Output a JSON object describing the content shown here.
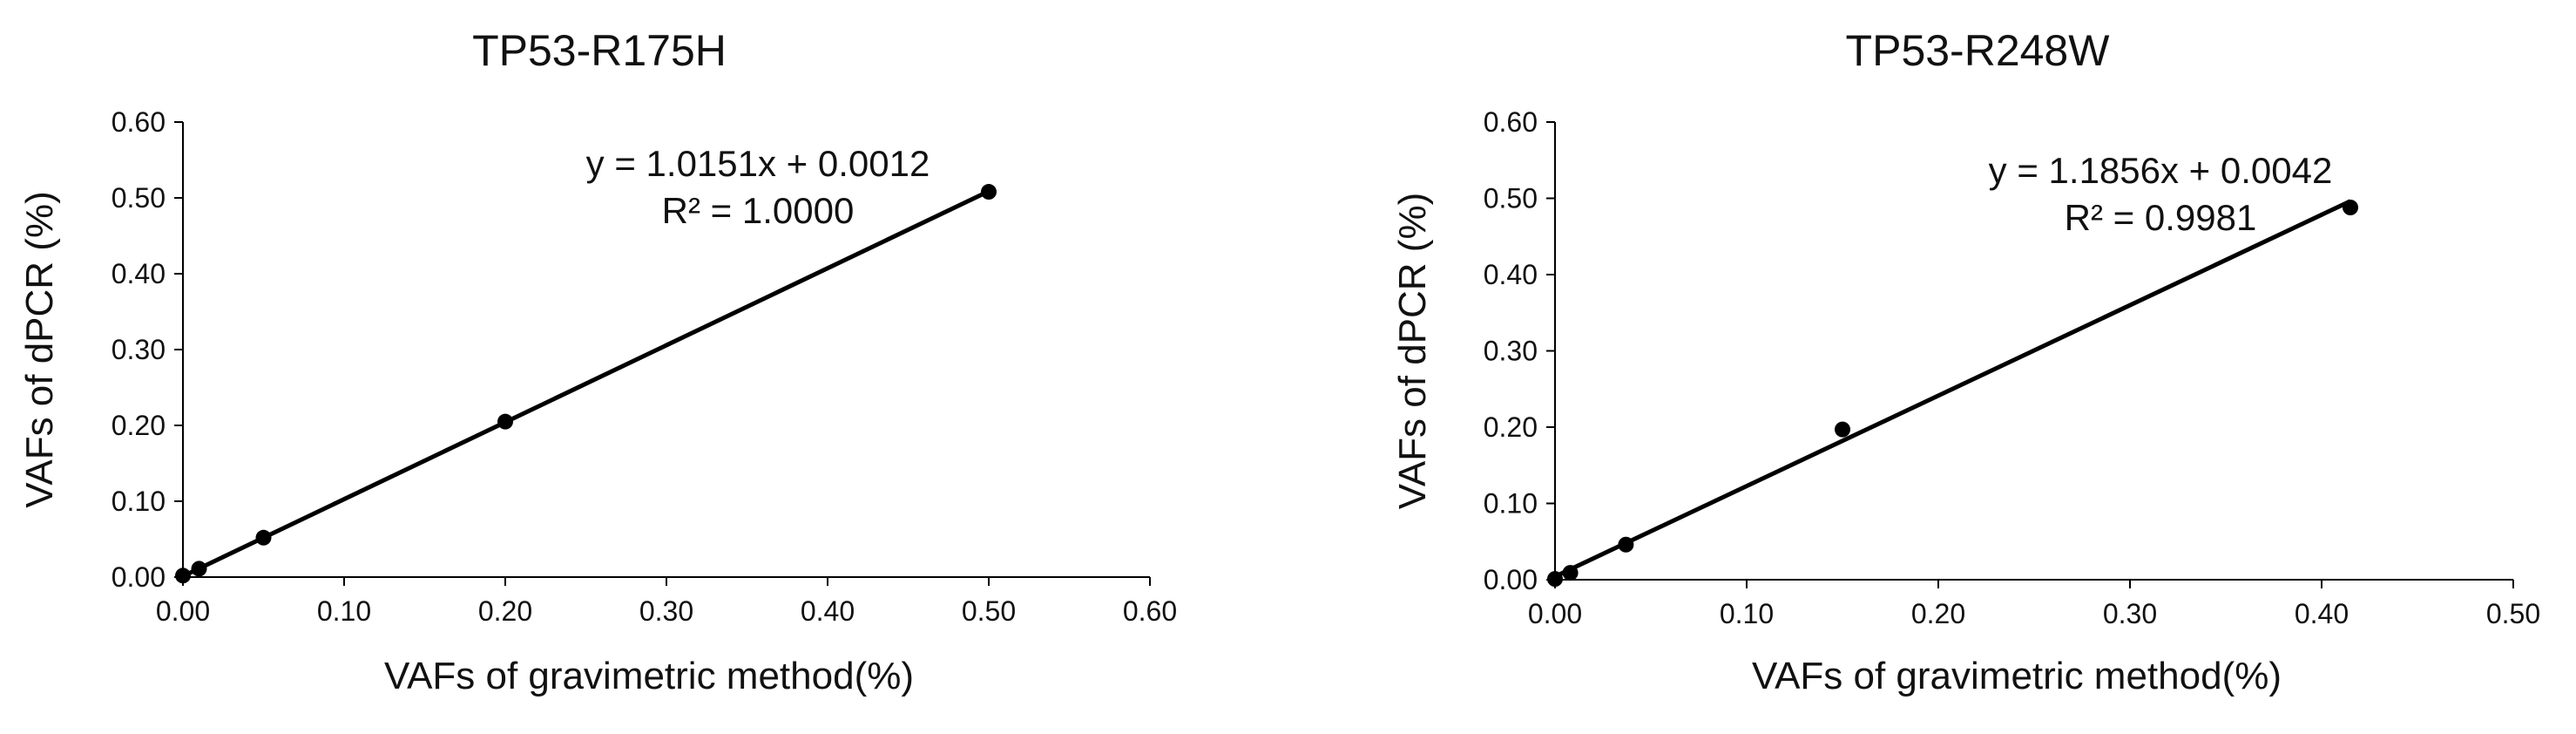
{
  "chart_data": [
    {
      "type": "scatter",
      "title": "TP53-R175H",
      "xlabel": "VAFs of gravimetric method(%)",
      "ylabel": "VAFs of dPCR (%)",
      "xlim": [
        0,
        0.6
      ],
      "ylim": [
        0,
        0.6
      ],
      "xticks": [
        "0.00",
        "0.10",
        "0.20",
        "0.30",
        "0.40",
        "0.50",
        "0.60"
      ],
      "yticks": [
        "0.00",
        "0.10",
        "0.20",
        "0.30",
        "0.40",
        "0.50",
        "0.60"
      ],
      "grid": false,
      "marker_color": "#000000",
      "points": [
        {
          "x": 0.0,
          "y": 0.002
        },
        {
          "x": 0.01,
          "y": 0.011
        },
        {
          "x": 0.05,
          "y": 0.052
        },
        {
          "x": 0.2,
          "y": 0.205
        },
        {
          "x": 0.5,
          "y": 0.508
        }
      ],
      "trendline": {
        "slope": 1.0151,
        "intercept": 0.0012,
        "x_range": [
          0.0,
          0.5
        ],
        "color": "#000000"
      },
      "equation_line1": "y = 1.0151x + 0.0012",
      "equation_line2": "R² = 1.0000"
    },
    {
      "type": "scatter",
      "title": "TP53-R248W",
      "xlabel": "VAFs of gravimetric method(%)",
      "ylabel": "VAFs of dPCR (%)",
      "xlim": [
        0,
        0.5
      ],
      "ylim": [
        0,
        0.6
      ],
      "xticks": [
        "0.00",
        "0.10",
        "0.20",
        "0.30",
        "0.40",
        "0.50"
      ],
      "yticks": [
        "0.00",
        "0.10",
        "0.20",
        "0.30",
        "0.40",
        "0.50",
        "0.60"
      ],
      "grid": false,
      "marker_color": "#000000",
      "points": [
        {
          "x": 0.0,
          "y": 0.001
        },
        {
          "x": 0.008,
          "y": 0.009
        },
        {
          "x": 0.037,
          "y": 0.046
        },
        {
          "x": 0.15,
          "y": 0.197
        },
        {
          "x": 0.415,
          "y": 0.488
        }
      ],
      "trendline": {
        "slope": 1.1856,
        "intercept": 0.0042,
        "x_range": [
          0.0,
          0.415
        ],
        "color": "#000000"
      },
      "equation_line1": "y = 1.1856x + 0.0042",
      "equation_line2": "R² = 0.9981"
    }
  ]
}
